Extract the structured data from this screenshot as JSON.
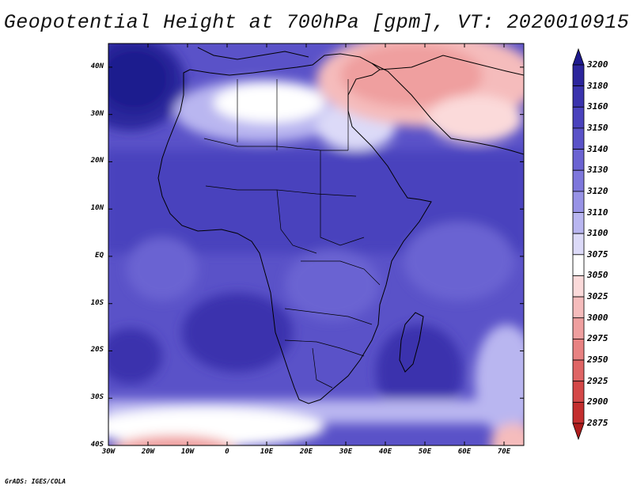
{
  "title": "Geopotential Height at 700hPa [gpm], VT: 2020010915",
  "credit": "GrADS: IGES/COLA",
  "lat_labels": [
    "40N",
    "30N",
    "20N",
    "10N",
    "EQ",
    "10S",
    "20S",
    "30S",
    "40S"
  ],
  "lon_labels": [
    "30W",
    "20W",
    "10W",
    "0",
    "10E",
    "20E",
    "30E",
    "40E",
    "50E",
    "60E",
    "70E"
  ],
  "colorbar": {
    "levels": [
      "3200",
      "3180",
      "3160",
      "3150",
      "3140",
      "3130",
      "3120",
      "3110",
      "3100",
      "3075",
      "3050",
      "3025",
      "3000",
      "2975",
      "2950",
      "2925",
      "2900",
      "2875"
    ],
    "colors": [
      "#1e1a8e",
      "#2c259c",
      "#3a33ad",
      "#4a42bd",
      "#5a52c8",
      "#6b63d2",
      "#7e77dc",
      "#9893e6",
      "#b9b6f0",
      "#dcdaf8",
      "#ffffff",
      "#fbdada",
      "#f5bcbc",
      "#ef9f9f",
      "#e88282",
      "#df6565",
      "#d44848",
      "#c42e2e",
      "#ae1c1c"
    ]
  },
  "map": {
    "domain": {
      "lon_min": -30,
      "lon_max": 75,
      "lat_min": -40,
      "lat_max": 45
    },
    "colors": {
      "deep": "#2c259c",
      "dark": "#3a33ad",
      "mid": "#5a52c8",
      "light": "#7e77dc",
      "pale": "#b9b6f0",
      "white": "#ffffff",
      "pink": "#f5bcbc",
      "red": "#e88282"
    }
  }
}
